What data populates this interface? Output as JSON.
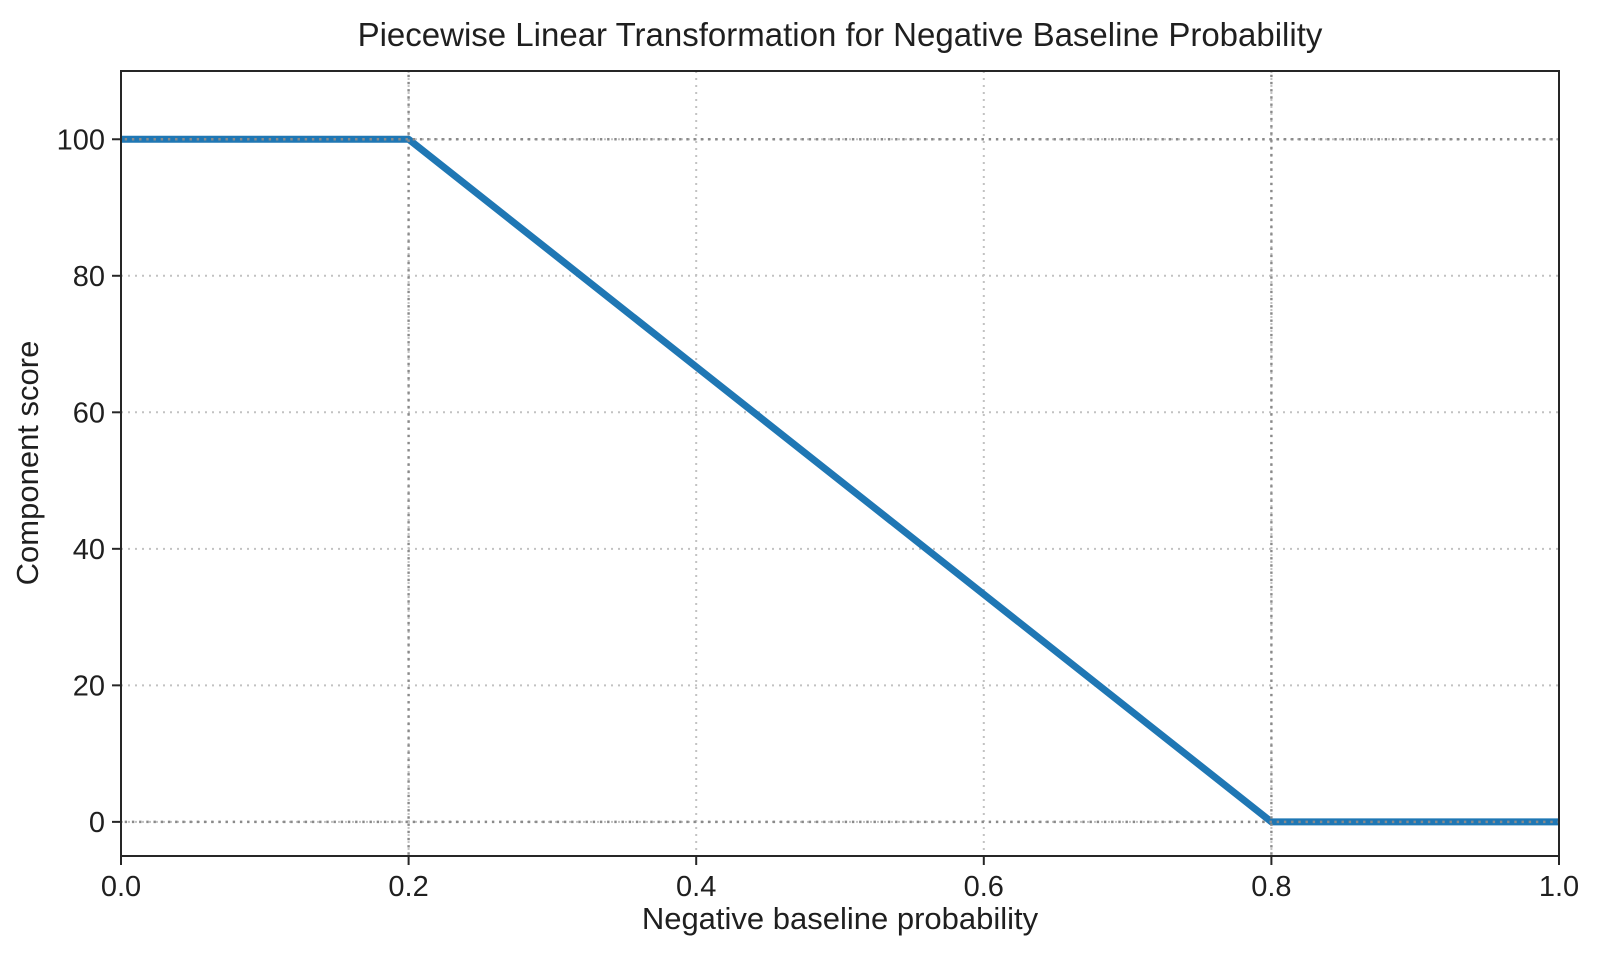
{
  "chart_data": {
    "type": "line",
    "title": "Piecewise Linear Transformation for Negative Baseline Probability",
    "xlabel": "Negative baseline probability",
    "ylabel": "Component score",
    "xlim": [
      0.0,
      1.0
    ],
    "ylim": [
      -5,
      110
    ],
    "xticks": [
      0.0,
      0.2,
      0.4,
      0.6,
      0.8,
      1.0
    ],
    "xtick_labels": [
      "0.0",
      "0.2",
      "0.4",
      "0.6",
      "0.8",
      "1.0"
    ],
    "yticks": [
      0,
      20,
      40,
      60,
      80,
      100
    ],
    "ytick_labels": [
      "0",
      "20",
      "40",
      "60",
      "80",
      "100"
    ],
    "grid": true,
    "grid_style": "dotted",
    "legend": false,
    "series": [
      {
        "name": "component-score-curve",
        "color": "#1f77b4",
        "points": [
          [
            0.0,
            100
          ],
          [
            0.2,
            100
          ],
          [
            0.8,
            0
          ],
          [
            1.0,
            0
          ]
        ]
      }
    ],
    "reference_lines": {
      "vertical": [
        0.2,
        0.8
      ],
      "horizontal": [
        0,
        100
      ],
      "color": "#8a8a8a",
      "style": "dotted"
    },
    "colors": {
      "line": "#1f77b4",
      "grid": "#c2c2c2",
      "axis": "#262626",
      "text": "#1f1f1f",
      "background": "#ffffff"
    }
  }
}
